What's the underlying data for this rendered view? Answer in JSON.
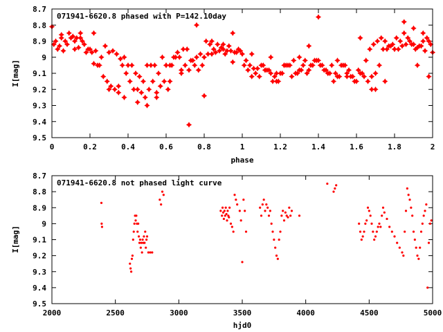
{
  "chart_data": [
    {
      "type": "scatter",
      "title": "071941-6620.8 phased with P=142.10day",
      "xlabel": "phase",
      "ylabel": "I[mag]",
      "xlim": [
        0,
        2
      ],
      "ylim": [
        9.5,
        8.7
      ],
      "y_inverted": true,
      "xticks": [
        "0",
        "0.2",
        "0.4",
        "0.6",
        "0.8",
        "1",
        "1.2",
        "1.4",
        "1.6",
        "1.8",
        "2"
      ],
      "yticks": [
        "8.7",
        "8.8",
        "8.9",
        "9",
        "9.1",
        "9.2",
        "9.3",
        "9.4",
        "9.5"
      ],
      "color": "#ff0000",
      "marker": "star",
      "series": [
        {
          "x": [
            0.0,
            0.02,
            0.04,
            0.06,
            0.08,
            0.1,
            0.12,
            0.14,
            0.16,
            0.18,
            0.2,
            0.22,
            0.24,
            0.26,
            0.28,
            0.3,
            0.32,
            0.34,
            0.36,
            0.38,
            0.4,
            0.42,
            0.44,
            0.46,
            0.48,
            0.5,
            0.52,
            0.54,
            0.56,
            0.58,
            0.6,
            0.62,
            0.64,
            0.66,
            0.68,
            0.7,
            0.72,
            0.74,
            0.76,
            0.78,
            0.8,
            0.82,
            0.84,
            0.86,
            0.88,
            0.9,
            0.92,
            0.94,
            0.96,
            0.98,
            1.0,
            1.02,
            1.04,
            1.06,
            1.08,
            1.1,
            1.12,
            1.14,
            1.16,
            1.18,
            1.2,
            1.22,
            1.24,
            1.26,
            1.28,
            1.3,
            1.32,
            1.34,
            1.36,
            1.38,
            1.4,
            1.42,
            1.44,
            1.46,
            1.48,
            1.5,
            1.52,
            1.54,
            1.56,
            1.58,
            1.6,
            1.62,
            1.64,
            1.66,
            1.68,
            1.7,
            1.72,
            1.74,
            1.76,
            1.78,
            1.8,
            1.82,
            1.84,
            1.86,
            1.88,
            1.9,
            1.92,
            1.94,
            1.96,
            1.98,
            2.0,
            0.01,
            0.03,
            0.05,
            0.07,
            0.09,
            0.11,
            0.13,
            0.15,
            0.17,
            0.19,
            0.21,
            0.23,
            0.25,
            0.27,
            0.29,
            0.31,
            0.33,
            0.35,
            0.37,
            0.39,
            0.41,
            0.43,
            0.45,
            0.47,
            0.49,
            0.51,
            0.53,
            0.55,
            0.57,
            0.59,
            0.61,
            0.63,
            0.65,
            0.67,
            0.69,
            0.71,
            0.73,
            0.75,
            0.77,
            0.79,
            0.81,
            0.83,
            0.85,
            0.87,
            0.89,
            0.91,
            0.93,
            0.95,
            0.97,
            0.99,
            1.01,
            1.03,
            1.05,
            1.07,
            1.09,
            1.11,
            1.13,
            1.15,
            1.17,
            1.19,
            1.21,
            1.23,
            1.25,
            1.27,
            1.29,
            1.31,
            1.33,
            1.35,
            1.37,
            1.39,
            1.41,
            1.43,
            1.45,
            1.47,
            1.49,
            1.51,
            1.53,
            1.55,
            1.57,
            1.59,
            1.61,
            1.63,
            1.65,
            1.67,
            1.69,
            1.71,
            1.73,
            1.75,
            1.77,
            1.79,
            1.81,
            1.83,
            1.85,
            1.87,
            1.89,
            1.91,
            1.93,
            1.95,
            1.97,
            1.99,
            0.05,
            0.12,
            0.22,
            0.3,
            0.38,
            0.45,
            0.5,
            0.55,
            0.62,
            0.68,
            0.72,
            0.76,
            0.84,
            0.9,
            0.95,
            1.05,
            1.12,
            1.18,
            1.22,
            1.3,
            1.4,
            1.45,
            1.55,
            1.62,
            1.68,
            1.75,
            1.8,
            1.85,
            1.9,
            1.95,
            0.15,
            0.35,
            0.6,
            0.8,
            1.15,
            1.35,
            1.5,
            1.7,
            1.92,
            1.98
          ],
          "y": [
            8.81,
            8.9,
            8.93,
            8.96,
            8.92,
            8.88,
            8.9,
            8.94,
            8.9,
            8.97,
            8.95,
            9.04,
            9.05,
            9.0,
            8.93,
            8.97,
            8.96,
            8.98,
            9.01,
            9.0,
            9.05,
            9.05,
            9.1,
            9.12,
            9.15,
            9.05,
            9.05,
            9.05,
            9.1,
            9.0,
            9.05,
            9.05,
            9.0,
            8.97,
            9.08,
            9.05,
            9.08,
            9.02,
            9.0,
            8.98,
            9.0,
            8.98,
            8.98,
            8.97,
            8.96,
            8.95,
            8.96,
            8.96,
            8.97,
            8.95,
            8.98,
            9.02,
            9.05,
            9.07,
            9.07,
            9.05,
            9.08,
            9.08,
            9.15,
            9.15,
            9.1,
            9.05,
            9.05,
            9.12,
            9.1,
            9.08,
            9.05,
            9.1,
            9.05,
            9.02,
            8.75,
            9.05,
            9.08,
            9.1,
            9.15,
            9.02,
            9.05,
            9.05,
            9.08,
            9.12,
            9.15,
            9.1,
            9.12,
            9.15,
            9.12,
            9.1,
            9.05,
            8.95,
            8.95,
            8.93,
            8.95,
            8.95,
            8.93,
            8.92,
            8.9,
            8.92,
            8.94,
            8.93,
            8.96,
            8.9,
            8.97,
            8.92,
            8.95,
            8.88,
            8.9,
            8.85,
            8.87,
            8.88,
            8.85,
            8.92,
            8.95,
            8.97,
            8.96,
            9.05,
            9.12,
            9.15,
            9.18,
            9.2,
            9.22,
            9.05,
            9.1,
            9.15,
            9.2,
            9.2,
            9.22,
            9.25,
            9.2,
            9.15,
            9.25,
            9.18,
            9.15,
            9.2,
            9.05,
            9.0,
            9.0,
            8.95,
            8.95,
            9.02,
            9.05,
            9.08,
            9.05,
            8.9,
            8.92,
            8.95,
            8.92,
            8.94,
            8.98,
            8.93,
            9.03,
            8.97,
            8.96,
            9.05,
            9.08,
            9.12,
            9.1,
            9.12,
            9.05,
            9.08,
            9.1,
            9.12,
            9.15,
            9.1,
            9.05,
            9.05,
            9.02,
            9.1,
            9.08,
            9.02,
            9.08,
            9.05,
            9.02,
            9.05,
            9.08,
            9.1,
            9.05,
            9.1,
            9.12,
            9.05,
            9.1,
            9.12,
            9.15,
            9.08,
            9.1,
            9.02,
            8.95,
            8.92,
            8.9,
            8.88,
            8.9,
            8.93,
            8.92,
            8.88,
            8.9,
            8.85,
            8.88,
            8.92,
            8.95,
            8.93,
            8.9,
            8.88,
            8.92,
            8.86,
            8.95,
            8.85,
            9.2,
            9.25,
            9.28,
            9.3,
            9.22,
            9.15,
            9.1,
            9.42,
            8.8,
            8.9,
            8.92,
            8.85,
            8.98,
            9.08,
            9.1,
            9.05,
            9.0,
            9.02,
            9.1,
            9.12,
            8.88,
            9.2,
            9.15,
            8.95,
            8.78,
            8.82,
            8.85,
            8.88,
            9.18,
            9.05,
            9.24,
            9.0,
            8.93,
            9.12,
            9.2,
            9.05,
            9.12
          ]
        }
      ]
    },
    {
      "type": "scatter",
      "title": "071941-6620.8 not phased light curve",
      "xlabel": "hjd0",
      "ylabel": "I[mag]",
      "xlim": [
        2000,
        5000
      ],
      "ylim": [
        9.5,
        8.7
      ],
      "y_inverted": true,
      "xticks": [
        "2000",
        "2500",
        "3000",
        "3500",
        "4000",
        "4500",
        "5000"
      ],
      "yticks": [
        "8.7",
        "8.8",
        "8.9",
        "9",
        "9.1",
        "9.2",
        "9.3",
        "9.4",
        "9.5"
      ],
      "color": "#ff0000",
      "marker": "dot",
      "series": [
        {
          "x": [
            2390,
            2392,
            2395,
            2615,
            2620,
            2625,
            2630,
            2635,
            2640,
            2645,
            2650,
            2655,
            2660,
            2665,
            2670,
            2675,
            2680,
            2685,
            2690,
            2695,
            2700,
            2705,
            2710,
            2715,
            2720,
            2725,
            2730,
            2735,
            2740,
            2745,
            2750,
            2760,
            2775,
            2790,
            2850,
            2860,
            2870,
            2880,
            3330,
            3340,
            3345,
            3350,
            3355,
            3360,
            3365,
            3370,
            3375,
            3380,
            3385,
            3390,
            3395,
            3400,
            3410,
            3420,
            3430,
            3440,
            3450,
            3460,
            3480,
            3490,
            3500,
            3510,
            3520,
            3530,
            3640,
            3650,
            3660,
            3670,
            3680,
            3690,
            3700,
            3710,
            3720,
            3730,
            3740,
            3750,
            3760,
            3770,
            3780,
            3790,
            3800,
            3810,
            3820,
            3830,
            3840,
            3850,
            3860,
            3870,
            3880,
            3890,
            3950,
            4170,
            4220,
            4230,
            4240,
            4420,
            4430,
            4440,
            4450,
            4460,
            4470,
            4480,
            4490,
            4500,
            4510,
            4520,
            4530,
            4540,
            4550,
            4560,
            4570,
            4580,
            4590,
            4600,
            4610,
            4620,
            4640,
            4660,
            4680,
            4700,
            4720,
            4740,
            4760,
            4770,
            4780,
            4790,
            4800,
            4810,
            4820,
            4830,
            4840,
            4850,
            4860,
            4870,
            4880,
            4890,
            4900,
            4910,
            4920,
            4930,
            4940,
            4950,
            4960,
            4970,
            4980,
            4990
          ],
          "y": [
            8.87,
            9.0,
            9.02,
            9.25,
            9.28,
            9.3,
            9.22,
            9.2,
            9.1,
            9.05,
            9.0,
            8.95,
            8.98,
            8.95,
            9.0,
            9.05,
            9.0,
            9.08,
            9.12,
            9.1,
            9.15,
            9.12,
            9.18,
            9.1,
            9.12,
            9.08,
            9.12,
            9.05,
            9.15,
            9.1,
            9.08,
            9.18,
            9.18,
            9.18,
            8.85,
            8.88,
            8.8,
            8.82,
            8.92,
            8.95,
            8.9,
            8.93,
            8.97,
            8.92,
            8.95,
            8.9,
            8.94,
            8.98,
            8.92,
            8.95,
            8.96,
            8.9,
            9.0,
            9.02,
            9.05,
            8.82,
            8.85,
            8.88,
            8.92,
            8.98,
            9.24,
            8.85,
            8.92,
            9.05,
            8.9,
            8.95,
            8.88,
            8.85,
            8.92,
            8.88,
            8.9,
            8.95,
            8.92,
            9.0,
            9.05,
            9.1,
            9.15,
            9.2,
            9.22,
            9.1,
            9.05,
            8.95,
            8.92,
            8.98,
            8.93,
            8.95,
            8.96,
            8.9,
            8.95,
            8.92,
            8.95,
            8.75,
            8.8,
            8.78,
            8.76,
            9.0,
            9.05,
            9.1,
            9.08,
            9.05,
            9.0,
            8.98,
            8.9,
            8.92,
            8.95,
            9.0,
            9.05,
            9.1,
            9.08,
            9.05,
            9.02,
            9.0,
            9.02,
            8.95,
            8.9,
            8.93,
            8.97,
            9.02,
            9.05,
            9.08,
            9.12,
            9.15,
            9.18,
            9.2,
            9.05,
            8.92,
            8.78,
            8.82,
            8.85,
            8.9,
            8.95,
            9.05,
            9.1,
            9.15,
            9.2,
            9.22,
            9.15,
            9.05,
            9.0,
            8.95,
            8.92,
            8.88,
            9.4,
            9.12,
            9.0,
            8.98
          ]
        }
      ]
    }
  ]
}
